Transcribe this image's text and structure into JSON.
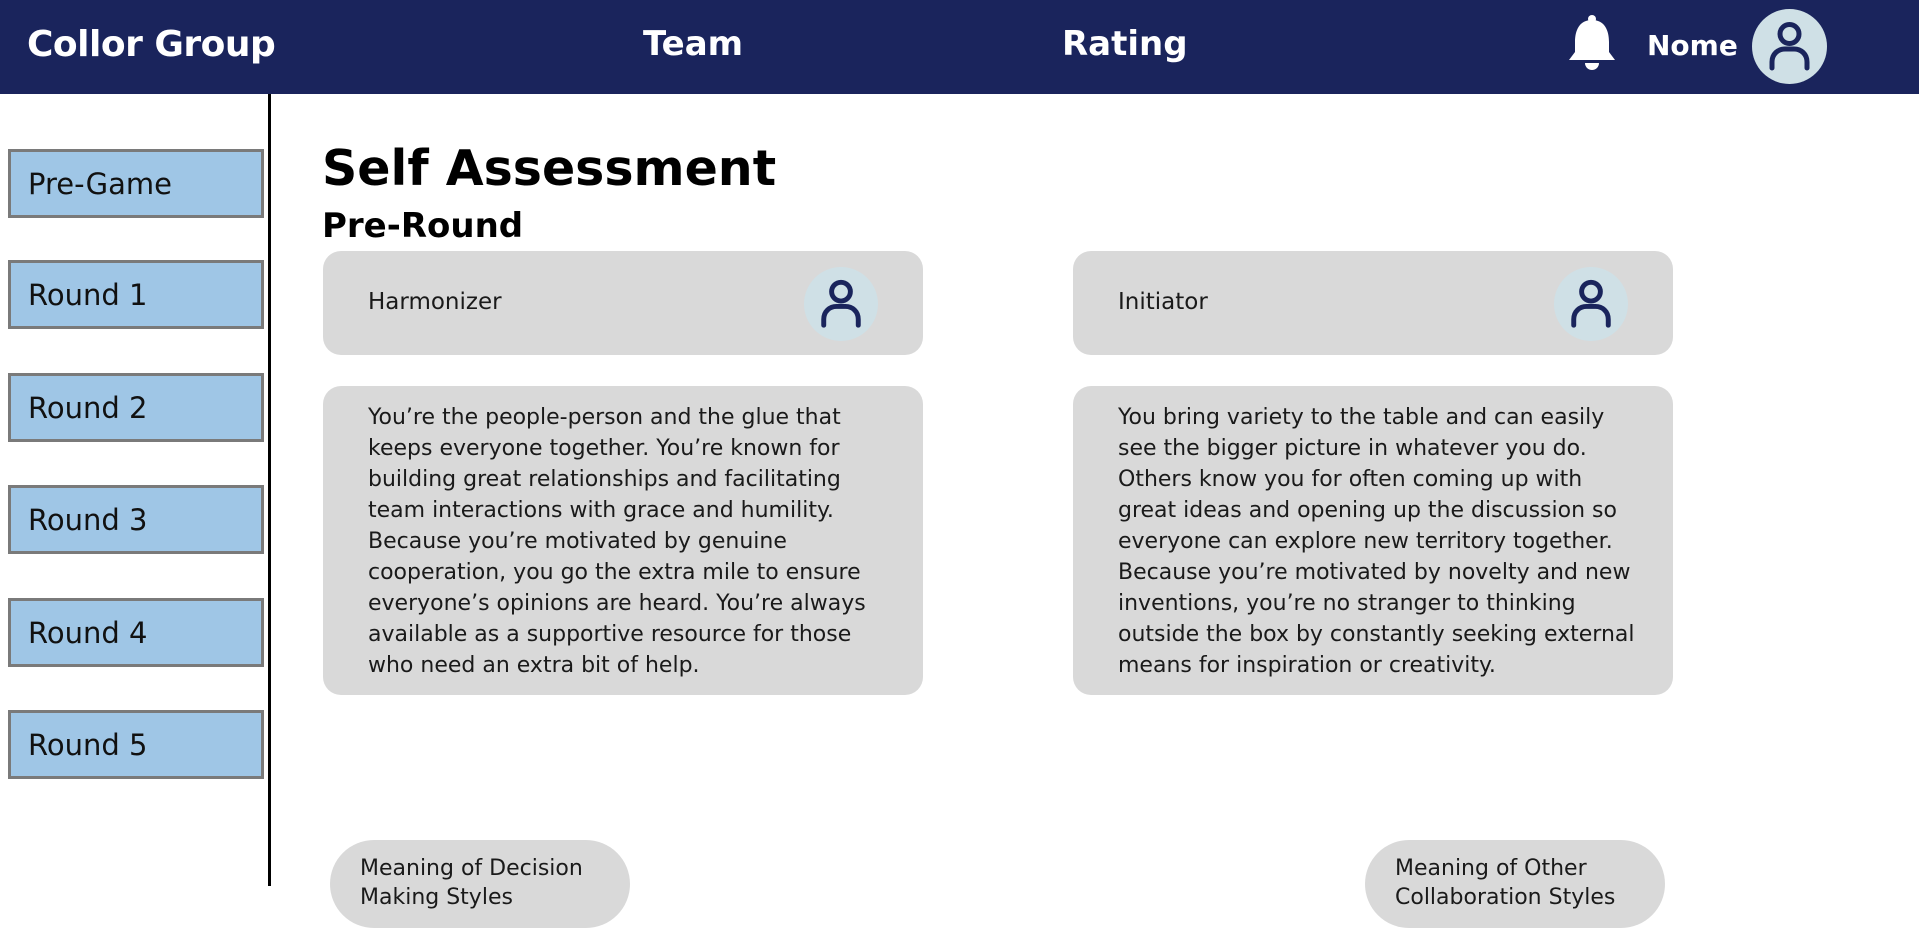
{
  "header": {
    "brand": "Collor Group",
    "nav": [
      "Team",
      "Rating"
    ],
    "user_name": "Nome",
    "icons": {
      "notifications": "bell-icon",
      "profile": "user-avatar-icon"
    },
    "colors": {
      "background": "#1a245c",
      "text": "#ffffff"
    }
  },
  "sidebar": {
    "items": [
      {
        "label": "Pre-Game"
      },
      {
        "label": "Round 1"
      },
      {
        "label": "Round 2"
      },
      {
        "label": "Round 3"
      },
      {
        "label": "Round 4"
      },
      {
        "label": "Round 5"
      }
    ],
    "colors": {
      "item_bg": "#9fc6e6",
      "item_border": "#7a7a7a"
    }
  },
  "main": {
    "title": "Self Assessment",
    "subtitle": "Pre-Round",
    "styles": [
      {
        "label": "Harmonizer",
        "icon": "user-avatar-icon",
        "description": "You’re the people-person and the glue that keeps everyone together. You’re known for building great relationships and facilitating team interactions with grace and humility. Because you’re motivated by genuine cooperation, you go the extra mile to ensure everyone’s opinions are heard. You’re always available as a supportive resource for those who need an extra bit of help."
      },
      {
        "label": "Initiator",
        "icon": "user-avatar-icon",
        "description": "You bring variety to the table and can easily see the bigger picture in whatever you do. Others know you for often coming up with great ideas and opening up the discussion so everyone can explore new territory together. Because you’re motivated by novelty and new inventions, you’re no stranger to thinking outside the box by constantly seeking external means for inspiration or creativity."
      }
    ],
    "buttons": {
      "decision_styles": "Meaning of Decision Making Styles",
      "collaboration_styles": "Meaning of Other Collaboration Styles"
    },
    "colors": {
      "card_bg": "#d9d9d9",
      "avatar_bg": "#cfe0e6",
      "icon_stroke": "#1a245c"
    }
  }
}
